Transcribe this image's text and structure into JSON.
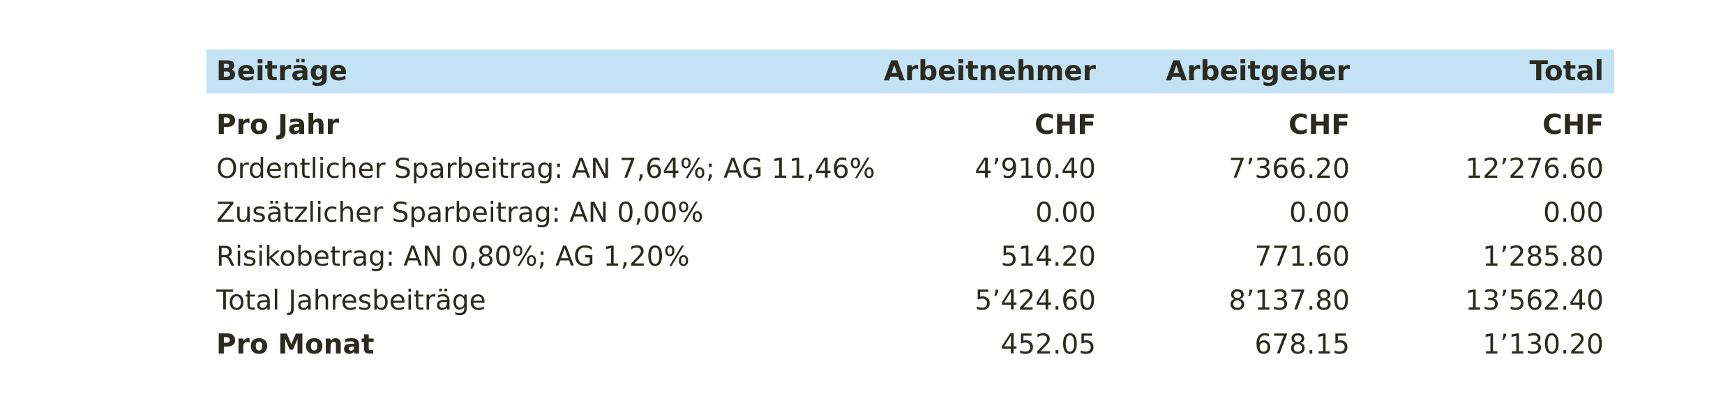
{
  "table": {
    "header": [
      "Beiträge",
      "Arbeitnehmer",
      "Arbeitgeber",
      "Total"
    ],
    "rows": [
      [
        "Pro Jahr",
        "CHF",
        "CHF",
        "CHF"
      ],
      [
        "Ordentlicher Sparbeitrag: AN 7,64%; AG 11,46%",
        "4’910.40",
        "7’366.20",
        "12’276.60"
      ],
      [
        "Zusätzlicher Sparbeitrag: AN 0,00%",
        "0.00",
        "0.00",
        "0.00"
      ],
      [
        "Risikobetrag: AN 0,80%; AG 1,20%",
        "514.20",
        "771.60",
        "1’285.80"
      ],
      [
        "Total Jahresbeiträge",
        "5’424.60",
        "8’137.80",
        "13’562.40"
      ],
      [
        "Pro Monat",
        "452.05",
        "678.15",
        "1’130.20"
      ]
    ]
  }
}
